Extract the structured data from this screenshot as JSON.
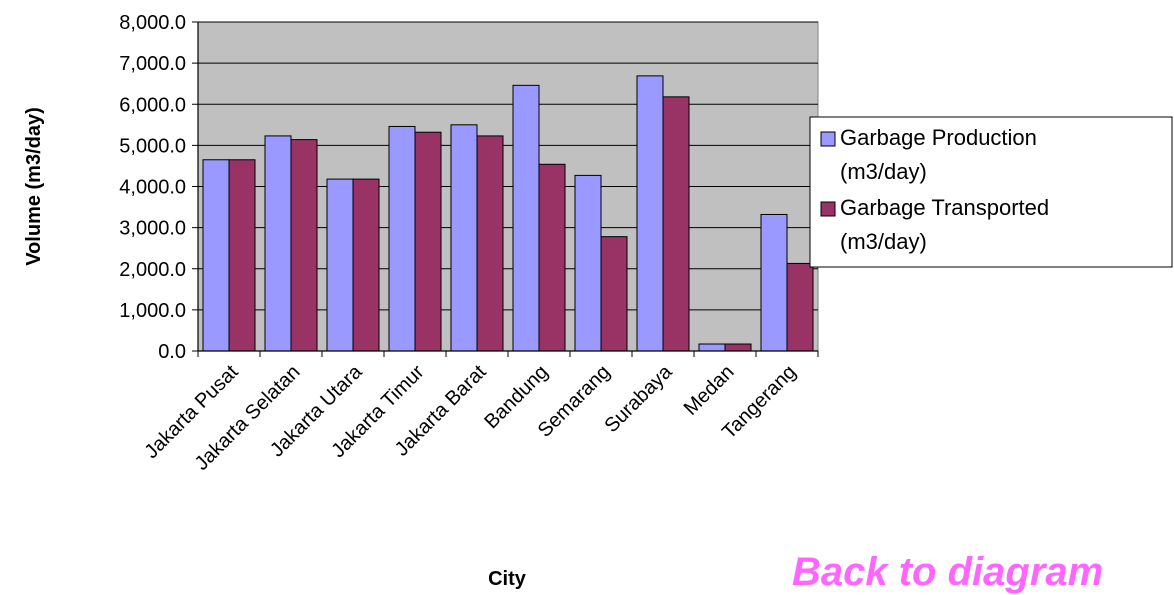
{
  "chart_data": {
    "type": "bar",
    "categories": [
      "Jakarta Pusat",
      "Jakarta Selatan",
      "Jakarta Utara",
      "Jakarta Timur",
      "Jakarta Barat",
      "Bandung",
      "Semarang",
      "Surabaya",
      "Medan",
      "Tangerang"
    ],
    "series": [
      {
        "name": "Garbage Production (m3/day)",
        "name_lines": [
          "Garbage Production",
          "(m3/day)"
        ],
        "color": "#9999ff",
        "values": [
          4650,
          5230,
          4180,
          5460,
          5500,
          6460,
          4270,
          6690,
          170,
          3320
        ]
      },
      {
        "name": "Garbage Transported (m3/day)",
        "name_lines": [
          "Garbage Transported",
          "(m3/day)"
        ],
        "color": "#993366",
        "values": [
          4650,
          5140,
          4180,
          5320,
          5230,
          4540,
          2780,
          6180,
          170,
          2130
        ]
      }
    ],
    "xlabel": "City",
    "ylabel": "Volume (m3/day)",
    "ylim": [
      0,
      8000
    ],
    "yticks": [
      "0.0",
      "1,000.0",
      "2,000.0",
      "3,000.0",
      "4,000.0",
      "5,000.0",
      "6,000.0",
      "7,000.0",
      "8,000.0"
    ],
    "plot_background": "#c0c0c0",
    "grid": true,
    "legend_position": "right"
  },
  "link": {
    "back_label": "Back to diagram",
    "color": "#ff66ff"
  }
}
